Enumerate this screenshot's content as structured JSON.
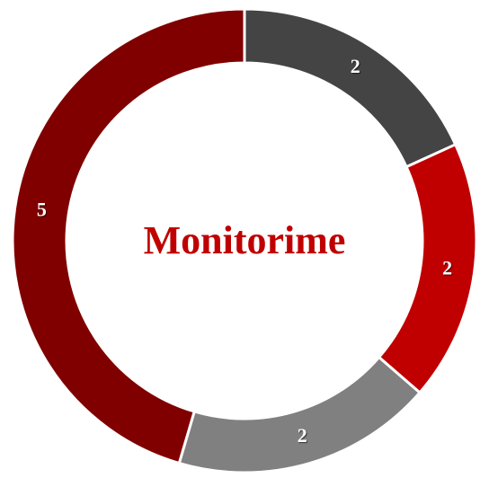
{
  "chart_data": {
    "type": "donut",
    "title": "Monitorime",
    "values": [
      2,
      2,
      2,
      5
    ],
    "colors": [
      "#444444",
      "#c00000",
      "#808080",
      "#800000"
    ]
  }
}
